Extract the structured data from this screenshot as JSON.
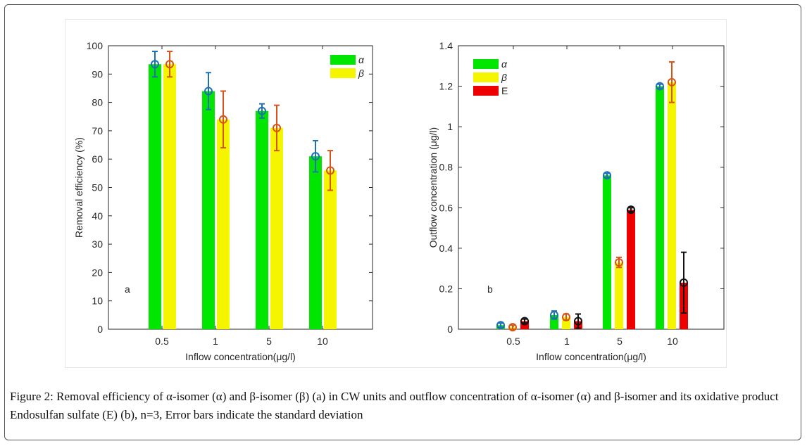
{
  "caption": {
    "label": "Figure 2:",
    "text": " Removal efficiency of α-isomer (α) and β-isomer (β) (a) in CW units and outflow concentration of α-isomer (α) and β-isomer and its oxidative product Endosulfan sulfate (E) (b), n=3, Error bars indicate the standard deviation"
  },
  "chart_data": [
    {
      "type": "bar",
      "panel_label": "a",
      "xlabel": "Inflow concentration(μg/l)",
      "ylabel": "Removal efficiency (%)",
      "ylim": [
        0,
        100
      ],
      "yticks": [
        0,
        10,
        20,
        30,
        40,
        50,
        60,
        70,
        80,
        90,
        100
      ],
      "categories": [
        "0.5",
        "1",
        "5",
        "10"
      ],
      "legend_position": "top-right",
      "series": [
        {
          "name": "α",
          "color": "#00e600",
          "marker_color": "#1f6fb5",
          "values": [
            93.5,
            84.0,
            77.0,
            61.0
          ],
          "errors": [
            4.5,
            6.5,
            2.5,
            5.5
          ]
        },
        {
          "name": "β",
          "color": "#f5f500",
          "marker_color": "#d95319",
          "values": [
            93.5,
            74.0,
            71.0,
            56.0
          ],
          "errors": [
            4.5,
            10.0,
            8.0,
            7.0
          ]
        }
      ]
    },
    {
      "type": "bar",
      "panel_label": "b",
      "xlabel": "Inflow concentration(μg/l)",
      "ylabel": "Outflow concentration (μg/l)",
      "ylim": [
        0,
        1.4
      ],
      "yticks": [
        "0",
        "0.2",
        "0.4",
        "0.6",
        "0.8",
        "1",
        "1.2",
        "1.4"
      ],
      "categories": [
        "0.5",
        "1",
        "5",
        "10"
      ],
      "legend_position": "top-left",
      "series": [
        {
          "name": "α",
          "color": "#00e600",
          "marker_color": "#1f6fb5",
          "values": [
            0.02,
            0.07,
            0.76,
            1.2
          ],
          "errors": [
            0.01,
            0.02,
            0.01,
            0.01
          ]
        },
        {
          "name": "β",
          "color": "#f5f500",
          "marker_color": "#d95319",
          "values": [
            0.01,
            0.06,
            0.33,
            1.22
          ],
          "errors": [
            0.01,
            0.015,
            0.025,
            0.1
          ]
        },
        {
          "name": "E",
          "color": "#ee0000",
          "marker_color": "#111111",
          "values": [
            0.04,
            0.04,
            0.59,
            0.23
          ],
          "errors": [
            0.01,
            0.035,
            0.01,
            0.15
          ]
        }
      ]
    }
  ]
}
